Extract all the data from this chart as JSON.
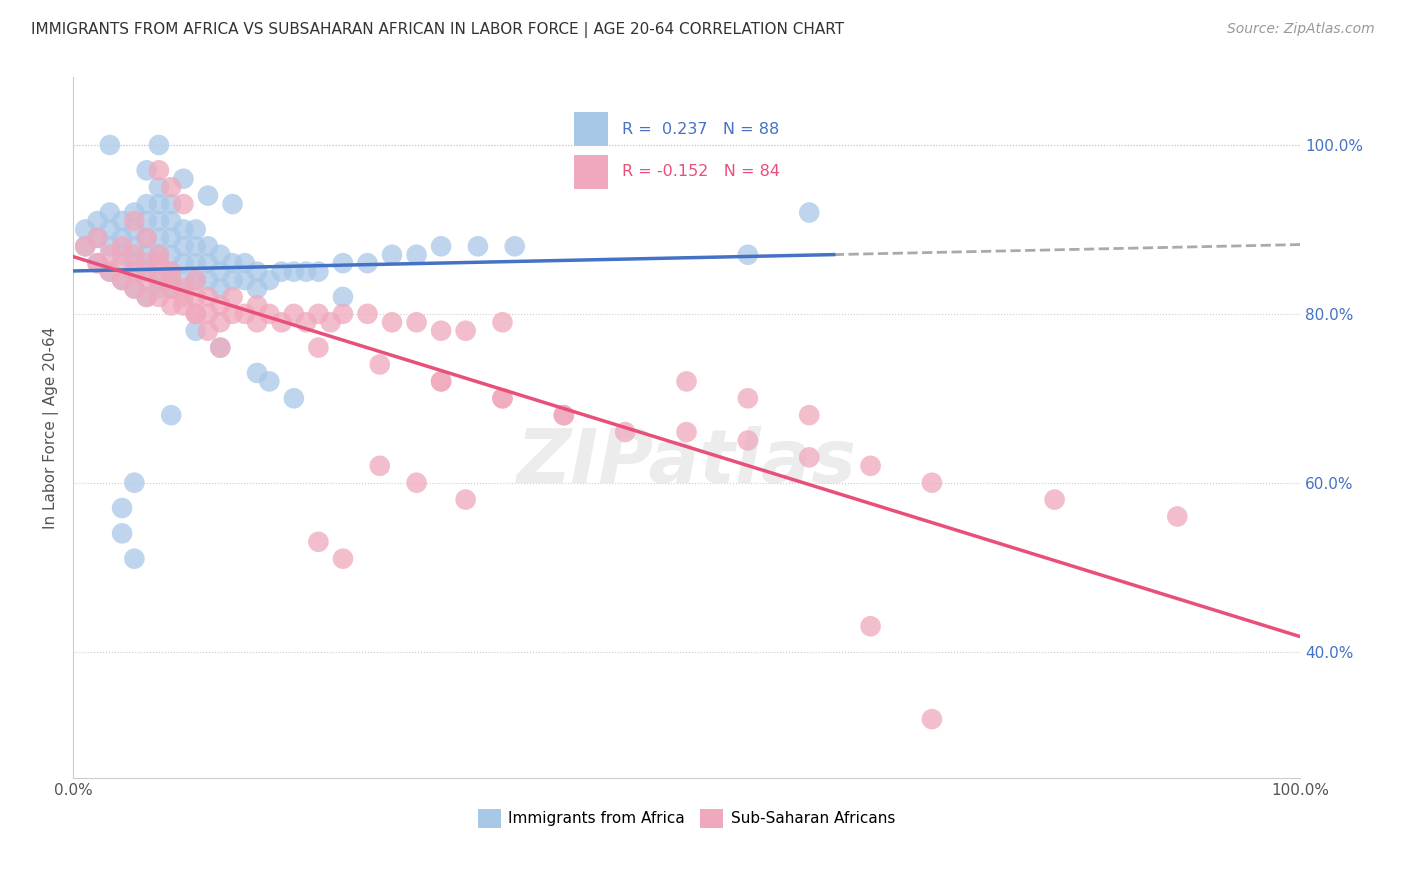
{
  "title": "IMMIGRANTS FROM AFRICA VS SUBSAHARAN AFRICAN IN LABOR FORCE | AGE 20-64 CORRELATION CHART",
  "source": "Source: ZipAtlas.com",
  "ylabel": "In Labor Force | Age 20-64",
  "xlim": [
    0.0,
    1.0
  ],
  "ylim": [
    0.25,
    1.08
  ],
  "y_ticks_right": [
    1.0,
    0.8,
    0.6,
    0.4
  ],
  "y_tick_labels_right": [
    "100.0%",
    "80.0%",
    "60.0%",
    "40.0%"
  ],
  "blue_R": 0.237,
  "blue_N": 88,
  "pink_R": -0.152,
  "pink_N": 84,
  "blue_color": "#a8c8e8",
  "pink_color": "#f0a8bc",
  "blue_line_color": "#4472c4",
  "pink_line_color": "#e8507a",
  "dashed_line_color": "#aaaaaa",
  "legend_label_blue": "Immigrants from Africa",
  "legend_label_pink": "Sub-Saharan Africans",
  "blue_x": [
    0.01,
    0.01,
    0.02,
    0.02,
    0.02,
    0.03,
    0.03,
    0.03,
    0.03,
    0.04,
    0.04,
    0.04,
    0.04,
    0.05,
    0.05,
    0.05,
    0.05,
    0.05,
    0.06,
    0.06,
    0.06,
    0.06,
    0.06,
    0.06,
    0.07,
    0.07,
    0.07,
    0.07,
    0.07,
    0.07,
    0.07,
    0.08,
    0.08,
    0.08,
    0.08,
    0.08,
    0.08,
    0.09,
    0.09,
    0.09,
    0.09,
    0.1,
    0.1,
    0.1,
    0.1,
    0.11,
    0.11,
    0.11,
    0.12,
    0.12,
    0.12,
    0.13,
    0.13,
    0.14,
    0.14,
    0.15,
    0.15,
    0.16,
    0.17,
    0.18,
    0.19,
    0.2,
    0.22,
    0.24,
    0.26,
    0.28,
    0.3,
    0.33,
    0.36,
    0.1,
    0.12,
    0.15,
    0.18,
    0.08,
    0.06,
    0.07,
    0.09,
    0.11,
    0.13,
    0.16,
    0.05,
    0.04,
    0.03,
    0.22,
    0.55,
    0.6,
    0.04,
    0.05
  ],
  "blue_y": [
    0.88,
    0.9,
    0.86,
    0.89,
    0.91,
    0.85,
    0.88,
    0.9,
    0.92,
    0.84,
    0.87,
    0.89,
    0.91,
    0.83,
    0.86,
    0.88,
    0.9,
    0.92,
    0.82,
    0.85,
    0.87,
    0.89,
    0.91,
    0.93,
    0.83,
    0.85,
    0.87,
    0.89,
    0.91,
    0.93,
    0.95,
    0.83,
    0.85,
    0.87,
    0.89,
    0.91,
    0.93,
    0.84,
    0.86,
    0.88,
    0.9,
    0.84,
    0.86,
    0.88,
    0.9,
    0.84,
    0.86,
    0.88,
    0.83,
    0.85,
    0.87,
    0.84,
    0.86,
    0.84,
    0.86,
    0.83,
    0.85,
    0.84,
    0.85,
    0.85,
    0.85,
    0.85,
    0.86,
    0.86,
    0.87,
    0.87,
    0.88,
    0.88,
    0.88,
    0.78,
    0.76,
    0.73,
    0.7,
    0.68,
    0.97,
    1.0,
    0.96,
    0.94,
    0.93,
    0.72,
    0.6,
    0.57,
    1.0,
    0.82,
    0.87,
    0.92,
    0.54,
    0.51
  ],
  "pink_x": [
    0.01,
    0.02,
    0.02,
    0.03,
    0.03,
    0.04,
    0.04,
    0.04,
    0.05,
    0.05,
    0.05,
    0.06,
    0.06,
    0.06,
    0.07,
    0.07,
    0.07,
    0.08,
    0.08,
    0.08,
    0.09,
    0.09,
    0.1,
    0.1,
    0.1,
    0.11,
    0.11,
    0.12,
    0.12,
    0.13,
    0.13,
    0.14,
    0.15,
    0.15,
    0.16,
    0.17,
    0.18,
    0.19,
    0.2,
    0.21,
    0.22,
    0.24,
    0.26,
    0.28,
    0.3,
    0.32,
    0.35,
    0.05,
    0.06,
    0.07,
    0.08,
    0.09,
    0.1,
    0.11,
    0.12,
    0.07,
    0.08,
    0.09,
    0.2,
    0.25,
    0.3,
    0.35,
    0.4,
    0.5,
    0.55,
    0.6,
    0.65,
    0.7,
    0.8,
    0.9,
    0.5,
    0.55,
    0.6,
    0.3,
    0.35,
    0.4,
    0.45,
    0.25,
    0.28,
    0.32,
    0.2,
    0.22,
    0.65,
    0.7
  ],
  "pink_y": [
    0.88,
    0.86,
    0.89,
    0.85,
    0.87,
    0.84,
    0.86,
    0.88,
    0.83,
    0.85,
    0.87,
    0.82,
    0.84,
    0.86,
    0.82,
    0.84,
    0.86,
    0.81,
    0.83,
    0.85,
    0.81,
    0.83,
    0.8,
    0.82,
    0.84,
    0.8,
    0.82,
    0.79,
    0.81,
    0.8,
    0.82,
    0.8,
    0.79,
    0.81,
    0.8,
    0.79,
    0.8,
    0.79,
    0.8,
    0.79,
    0.8,
    0.8,
    0.79,
    0.79,
    0.78,
    0.78,
    0.79,
    0.91,
    0.89,
    0.87,
    0.84,
    0.82,
    0.8,
    0.78,
    0.76,
    0.97,
    0.95,
    0.93,
    0.76,
    0.74,
    0.72,
    0.7,
    0.68,
    0.66,
    0.65,
    0.63,
    0.62,
    0.6,
    0.58,
    0.56,
    0.72,
    0.7,
    0.68,
    0.72,
    0.7,
    0.68,
    0.66,
    0.62,
    0.6,
    0.58,
    0.53,
    0.51,
    0.43,
    0.32
  ]
}
